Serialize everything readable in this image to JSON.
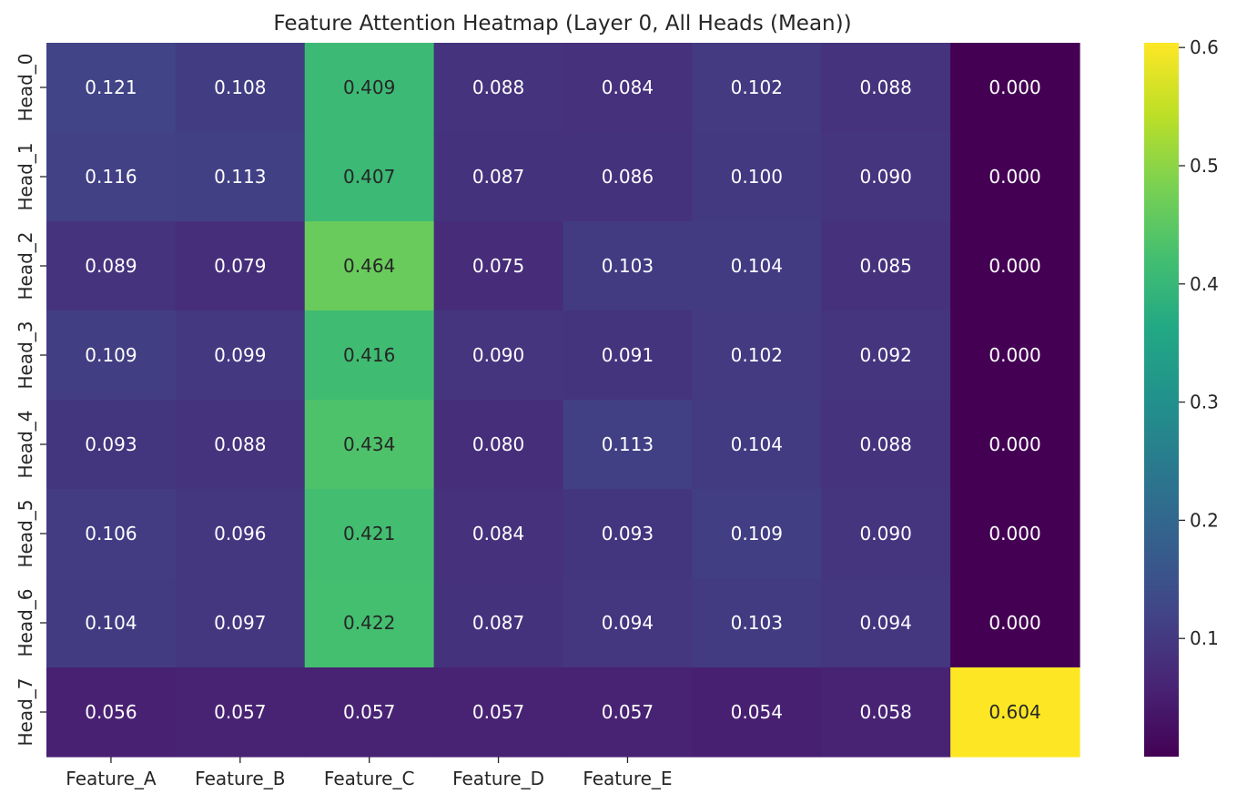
{
  "chart_data": {
    "type": "heatmap",
    "title": "Feature Attention Heatmap (Layer 0, All Heads (Mean))",
    "xlabel": "",
    "ylabel": "",
    "x_tick_labels": [
      "Feature_A",
      "Feature_B",
      "Feature_C",
      "Feature_D",
      "Feature_E",
      "",
      "",
      ""
    ],
    "y_tick_labels": [
      "Head_0",
      "Head_1",
      "Head_2",
      "Head_3",
      "Head_4",
      "Head_5",
      "Head_6",
      "Head_7"
    ],
    "values": [
      [
        0.121,
        0.108,
        0.409,
        0.088,
        0.084,
        0.102,
        0.088,
        0.0
      ],
      [
        0.116,
        0.113,
        0.407,
        0.087,
        0.086,
        0.1,
        0.09,
        0.0
      ],
      [
        0.089,
        0.079,
        0.464,
        0.075,
        0.103,
        0.104,
        0.085,
        0.0
      ],
      [
        0.109,
        0.099,
        0.416,
        0.09,
        0.091,
        0.102,
        0.092,
        0.0
      ],
      [
        0.093,
        0.088,
        0.434,
        0.08,
        0.113,
        0.104,
        0.088,
        0.0
      ],
      [
        0.106,
        0.096,
        0.421,
        0.084,
        0.093,
        0.109,
        0.09,
        0.0
      ],
      [
        0.104,
        0.097,
        0.422,
        0.087,
        0.094,
        0.103,
        0.094,
        0.0
      ],
      [
        0.056,
        0.057,
        0.057,
        0.057,
        0.057,
        0.054,
        0.058,
        0.604
      ]
    ],
    "value_format": "0.000",
    "colormap": "viridis",
    "color_range": [
      0.0,
      0.604
    ],
    "colorbar": {
      "ticks": [
        0.1,
        0.2,
        0.3,
        0.4,
        0.5,
        0.6
      ],
      "tick_labels": [
        "0.1",
        "0.2",
        "0.3",
        "0.4",
        "0.5",
        "0.6"
      ],
      "placement": "right"
    },
    "grid": false
  }
}
